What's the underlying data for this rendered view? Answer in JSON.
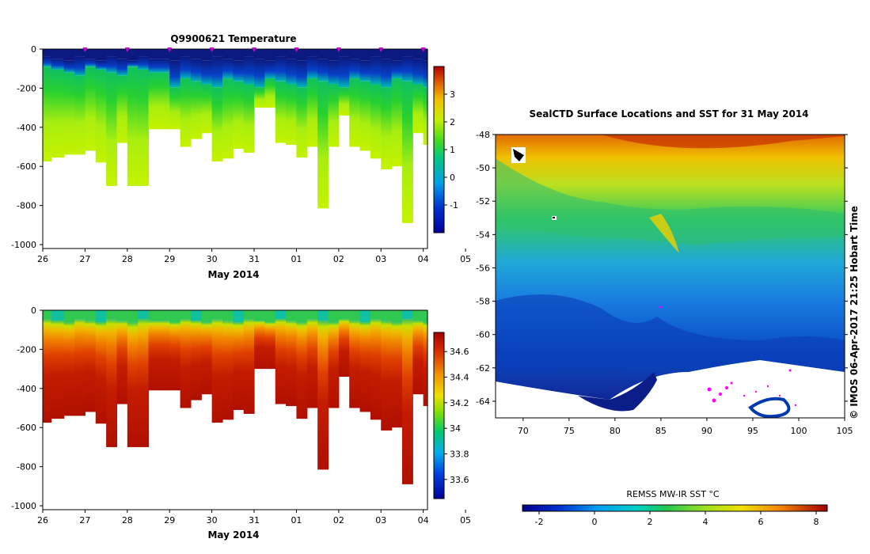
{
  "chart_data": [
    {
      "type": "heatmap",
      "title": "Q9900621  Temperature",
      "xlabel": "May 2014",
      "xlim": [
        26,
        35.1
      ],
      "x_ticks": [
        "26",
        "27",
        "28",
        "29",
        "30",
        "31",
        "01",
        "02",
        "03",
        "04",
        "05"
      ],
      "ylim": [
        -1020,
        0
      ],
      "y_ticks": [
        "0",
        "-200",
        "-400",
        "-600",
        "-800",
        "-1000"
      ],
      "colorbar": {
        "range": [
          -2,
          4
        ],
        "ticks": [
          "3",
          "2",
          "1",
          "0",
          "-1"
        ]
      },
      "profile_days": [
        26.0,
        26.2,
        26.5,
        26.75,
        27.0,
        27.25,
        27.5,
        27.75,
        28.0,
        28.25,
        28.5,
        29.0,
        29.25,
        29.5,
        29.75,
        30.0,
        30.25,
        30.5,
        30.75,
        31.0,
        31.25,
        31.5,
        31.75,
        32.0,
        32.25,
        32.5,
        32.75,
        33.0,
        33.25,
        33.5,
        33.75,
        34.0,
        34.25,
        34.5,
        34.75,
        35.0
      ],
      "profile_max_depth": [
        -575,
        -555,
        -540,
        -540,
        -520,
        -580,
        -700,
        -480,
        -700,
        -700,
        -410,
        -410,
        -500,
        -460,
        -430,
        -575,
        -560,
        -510,
        -530,
        -300,
        -300,
        -480,
        -490,
        -555,
        -500,
        -815,
        -500,
        -340,
        -500,
        -520,
        -560,
        -615,
        -600,
        -890,
        -430,
        -490
      ],
      "surface_markers": [
        27,
        28,
        29,
        30,
        31,
        32,
        33,
        34,
        35
      ]
    },
    {
      "type": "heatmap",
      "title": "",
      "xlabel": "May 2014",
      "xlim": [
        26,
        35.1
      ],
      "x_ticks": [
        "26",
        "27",
        "28",
        "29",
        "30",
        "31",
        "01",
        "02",
        "03",
        "04",
        "05"
      ],
      "ylim": [
        -1020,
        0
      ],
      "y_ticks": [
        "0",
        "-200",
        "-400",
        "-600",
        "-800",
        "-1000"
      ],
      "colorbar": {
        "range": [
          33.45,
          34.75
        ],
        "ticks": [
          "34.6",
          "34.4",
          "34.2",
          "34",
          "33.8",
          "33.6"
        ]
      }
    },
    {
      "type": "heatmap",
      "title": "SealCTD Surface Locations and SST for 31 May 2014",
      "xlim": [
        67,
        105
      ],
      "x_ticks": [
        "70",
        "75",
        "80",
        "85",
        "90",
        "95",
        "100",
        "105"
      ],
      "ylim": [
        -65,
        -48
      ],
      "y_ticks": [
        "-48",
        "-50",
        "-52",
        "-54",
        "-56",
        "-58",
        "-60",
        "-62",
        "-64"
      ],
      "colorbar": {
        "label": "REMSS MW-IR SST °C",
        "range": [
          -2.6,
          8.4
        ],
        "ticks": [
          "-2",
          "0",
          "2",
          "4",
          "6",
          "8"
        ]
      },
      "credit": "© IMOS 06-Apr-2017 21:25 Hobart Time"
    }
  ]
}
